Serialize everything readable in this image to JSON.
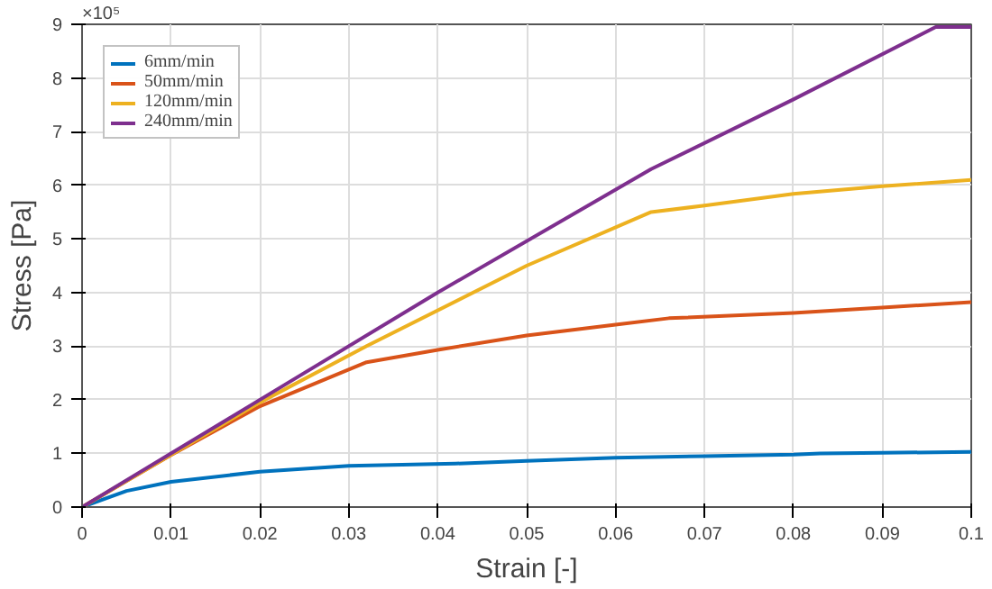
{
  "chart_data": {
    "type": "line",
    "xlabel": "Strain [-]",
    "ylabel": "Stress [Pa]",
    "annotations": [
      "×10⁵"
    ],
    "xlim": [
      0,
      0.1
    ],
    "ylim": [
      0,
      9
    ],
    "xticks": [
      0,
      0.01,
      0.02,
      0.03,
      0.04,
      0.05,
      0.06,
      0.07,
      0.08,
      0.09,
      0.1
    ],
    "yticks": [
      0,
      1,
      2,
      3,
      4,
      5,
      6,
      7,
      8,
      9
    ],
    "grid": true,
    "legend": "top left",
    "marker": "none",
    "line_style": "solid",
    "series": [
      {
        "name": "6mm/min",
        "color": "#0072bd",
        "x": [
          0,
          0.005,
          0.01,
          0.02,
          0.03,
          0.042,
          0.05,
          0.06,
          0.07,
          0.08,
          0.083,
          0.09,
          0.1
        ],
        "values": [
          0,
          0.3,
          0.47,
          0.66,
          0.77,
          0.81,
          0.86,
          0.92,
          0.95,
          0.98,
          1.0,
          1.01,
          1.03
        ]
      },
      {
        "name": "50mm/min",
        "color": "#d95319",
        "x": [
          0,
          0.01,
          0.02,
          0.032,
          0.04,
          0.05,
          0.06,
          0.066,
          0.08,
          0.09,
          0.1
        ],
        "values": [
          0,
          0.97,
          1.88,
          2.7,
          2.93,
          3.2,
          3.4,
          3.52,
          3.62,
          3.72,
          3.82
        ]
      },
      {
        "name": "120mm/min",
        "color": "#edb120",
        "x": [
          0,
          0.02,
          0.032,
          0.05,
          0.064,
          0.07,
          0.08,
          0.09,
          0.1
        ],
        "values": [
          0,
          1.95,
          3.0,
          4.5,
          5.5,
          5.62,
          5.84,
          5.98,
          6.1
        ]
      },
      {
        "name": "240mm/min",
        "color": "#7e2f8e",
        "x": [
          0,
          0.02,
          0.04,
          0.064,
          0.08,
          0.096,
          0.1
        ],
        "values": [
          0,
          2.0,
          4.0,
          6.3,
          7.6,
          8.95,
          8.95
        ]
      }
    ]
  }
}
